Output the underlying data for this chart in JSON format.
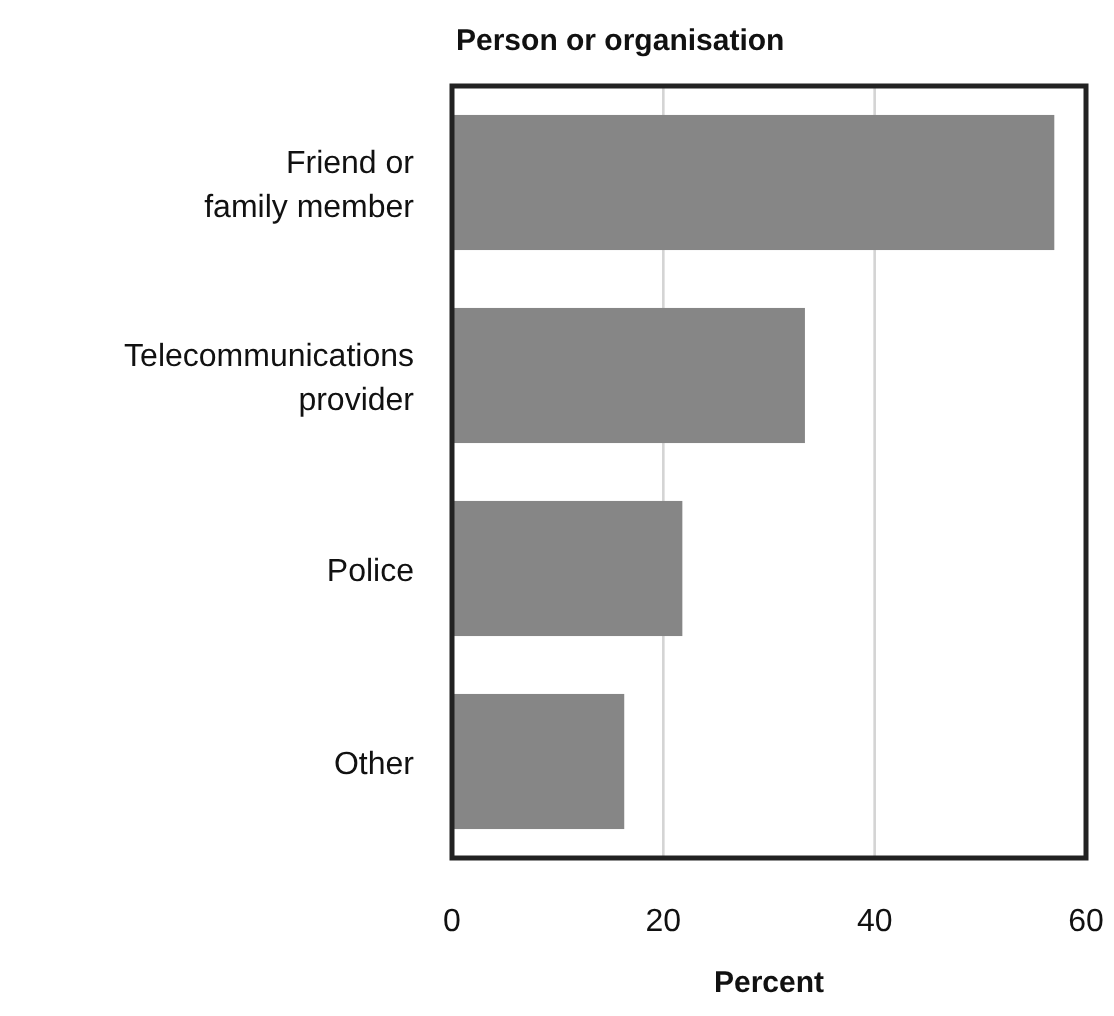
{
  "chart_data": {
    "type": "bar",
    "orientation": "horizontal",
    "ylabel": "Person or organisation",
    "xlabel": "Percent",
    "categories": [
      "Friend or\nfamily member",
      "Telecommunications\nprovider",
      "Police",
      "Other"
    ],
    "values": [
      57,
      33.4,
      21.8,
      16.3
    ],
    "color": "#868686",
    "xlim": [
      0,
      60
    ],
    "xticks": [
      0,
      20,
      40,
      60
    ],
    "grid": "x"
  }
}
